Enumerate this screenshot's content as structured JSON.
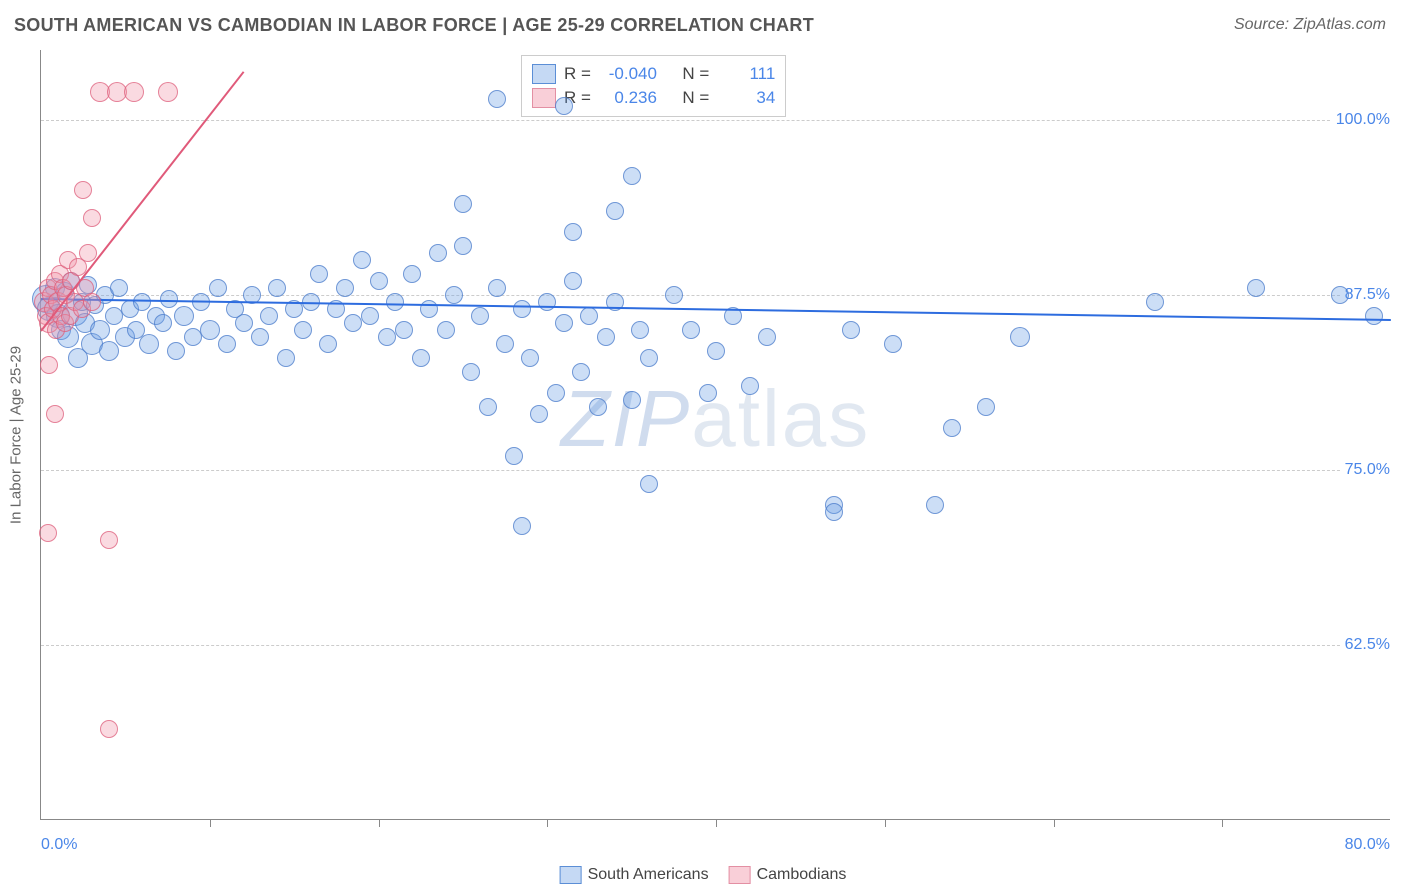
{
  "header": {
    "title": "SOUTH AMERICAN VS CAMBODIAN IN LABOR FORCE | AGE 25-29 CORRELATION CHART",
    "source": "Source: ZipAtlas.com"
  },
  "chart": {
    "type": "scatter",
    "watermark_a": "ZIP",
    "watermark_b": "atlas",
    "background_color": "#ffffff",
    "grid_color": "#cccccc",
    "axis_color": "#888888",
    "yaxis_title": "In Labor Force | Age 25-29",
    "yaxis_title_color": "#666666",
    "xlim": [
      0,
      80
    ],
    "ylim": [
      50,
      105
    ],
    "xtick_step": 10,
    "yticks": [
      62.5,
      75.0,
      87.5,
      100.0
    ],
    "ytick_labels": [
      "62.5%",
      "75.0%",
      "87.5%",
      "100.0%"
    ],
    "xaxis_label_left": "0.0%",
    "xaxis_label_right": "80.0%",
    "tick_label_color": "#4a86e8",
    "tick_label_fontsize": 16,
    "point_radius_range": [
      8,
      14
    ],
    "series": [
      {
        "name": "South Americans",
        "fill": "rgba(110,160,230,0.35)",
        "stroke": "rgba(70,120,200,0.7)",
        "trend_color": "#2d6cdf",
        "trend": {
          "x0": 0,
          "y0": 87.3,
          "x1": 80,
          "y1": 85.8
        },
        "R": "-0.040",
        "N": "111",
        "swatch_fill": "rgba(150,185,235,0.55)",
        "swatch_border": "#5b8ed6",
        "points": [
          [
            0.3,
            87.2,
            14
          ],
          [
            0.5,
            86.5,
            12
          ],
          [
            0.8,
            88.0,
            10
          ],
          [
            1.0,
            86.0,
            12
          ],
          [
            1.2,
            85.0,
            10
          ],
          [
            1.4,
            87.8,
            9
          ],
          [
            1.6,
            84.5,
            11
          ],
          [
            1.8,
            88.5,
            9
          ],
          [
            2.0,
            86.2,
            13
          ],
          [
            2.2,
            83.0,
            10
          ],
          [
            2.4,
            87.0,
            9
          ],
          [
            2.6,
            85.5,
            10
          ],
          [
            2.8,
            88.2,
            9
          ],
          [
            3.0,
            84.0,
            11
          ],
          [
            3.2,
            86.8,
            9
          ],
          [
            3.5,
            85.0,
            10
          ],
          [
            3.8,
            87.5,
            9
          ],
          [
            4.0,
            83.5,
            10
          ],
          [
            4.3,
            86.0,
            9
          ],
          [
            4.6,
            88.0,
            9
          ],
          [
            5.0,
            84.5,
            10
          ],
          [
            5.3,
            86.5,
            9
          ],
          [
            5.6,
            85.0,
            9
          ],
          [
            6.0,
            87.0,
            9
          ],
          [
            6.4,
            84.0,
            10
          ],
          [
            6.8,
            86.0,
            9
          ],
          [
            7.2,
            85.5,
            9
          ],
          [
            7.6,
            87.2,
            9
          ],
          [
            8.0,
            83.5,
            9
          ],
          [
            8.5,
            86.0,
            10
          ],
          [
            9.0,
            84.5,
            9
          ],
          [
            9.5,
            87.0,
            9
          ],
          [
            10.0,
            85.0,
            10
          ],
          [
            10.5,
            88.0,
            9
          ],
          [
            11.0,
            84.0,
            9
          ],
          [
            11.5,
            86.5,
            9
          ],
          [
            12.0,
            85.5,
            9
          ],
          [
            12.5,
            87.5,
            9
          ],
          [
            13.0,
            84.5,
            9
          ],
          [
            13.5,
            86.0,
            9
          ],
          [
            14.0,
            88.0,
            9
          ],
          [
            14.5,
            83.0,
            9
          ],
          [
            15.0,
            86.5,
            9
          ],
          [
            15.5,
            85.0,
            9
          ],
          [
            16.0,
            87.0,
            9
          ],
          [
            16.5,
            89.0,
            9
          ],
          [
            17.0,
            84.0,
            9
          ],
          [
            17.5,
            86.5,
            9
          ],
          [
            18.0,
            88.0,
            9
          ],
          [
            18.5,
            85.5,
            9
          ],
          [
            19.0,
            90.0,
            9
          ],
          [
            19.5,
            86.0,
            9
          ],
          [
            20.0,
            88.5,
            9
          ],
          [
            20.5,
            84.5,
            9
          ],
          [
            21.0,
            87.0,
            9
          ],
          [
            21.5,
            85.0,
            9
          ],
          [
            22.0,
            89.0,
            9
          ],
          [
            22.5,
            83.0,
            9
          ],
          [
            23.0,
            86.5,
            9
          ],
          [
            23.5,
            90.5,
            9
          ],
          [
            24.0,
            85.0,
            9
          ],
          [
            24.5,
            87.5,
            9
          ],
          [
            25.0,
            91.0,
            9
          ],
          [
            25.5,
            82.0,
            9
          ],
          [
            26.0,
            86.0,
            9
          ],
          [
            26.5,
            79.5,
            9
          ],
          [
            27.0,
            88.0,
            9
          ],
          [
            27.5,
            84.0,
            9
          ],
          [
            28.0,
            76.0,
            9
          ],
          [
            28.5,
            86.5,
            9
          ],
          [
            29.0,
            83.0,
            9
          ],
          [
            29.5,
            79.0,
            9
          ],
          [
            30.0,
            87.0,
            9
          ],
          [
            30.5,
            80.5,
            9
          ],
          [
            31.0,
            85.5,
            9
          ],
          [
            27.0,
            101.5,
            9
          ],
          [
            28.5,
            71.0,
            9
          ],
          [
            31.5,
            88.5,
            9
          ],
          [
            32.0,
            82.0,
            9
          ],
          [
            32.5,
            86.0,
            9
          ],
          [
            33.0,
            79.5,
            9
          ],
          [
            33.5,
            84.5,
            9
          ],
          [
            34.0,
            87.0,
            9
          ],
          [
            25.0,
            94.0,
            9
          ],
          [
            35.0,
            80.0,
            9
          ],
          [
            35.5,
            85.0,
            9
          ],
          [
            36.0,
            83.0,
            9
          ],
          [
            31.0,
            101.0,
            9
          ],
          [
            37.5,
            87.5,
            9
          ],
          [
            31.5,
            92.0,
            9
          ],
          [
            38.5,
            85.0,
            9
          ],
          [
            34.0,
            93.5,
            9
          ],
          [
            39.5,
            80.5,
            9
          ],
          [
            40.0,
            83.5,
            9
          ],
          [
            35.0,
            96.0,
            9
          ],
          [
            41.0,
            86.0,
            9
          ],
          [
            36.0,
            74.0,
            9
          ],
          [
            42.0,
            81.0,
            9
          ],
          [
            43.0,
            84.5,
            9
          ],
          [
            47.0,
            72.5,
            9
          ],
          [
            47.0,
            72.0,
            9
          ],
          [
            48.0,
            85.0,
            9
          ],
          [
            50.5,
            84.0,
            9
          ],
          [
            53.0,
            72.5,
            9
          ],
          [
            54.0,
            78.0,
            9
          ],
          [
            56.0,
            79.5,
            9
          ],
          [
            58.0,
            84.5,
            10
          ],
          [
            66.0,
            87.0,
            9
          ],
          [
            77.0,
            87.5,
            9
          ],
          [
            79.0,
            86.0,
            9
          ],
          [
            72.0,
            88.0,
            9
          ]
        ]
      },
      {
        "name": "Cambodians",
        "fill": "rgba(240,150,170,0.35)",
        "stroke": "rgba(220,90,120,0.7)",
        "trend_color": "#e05a7a",
        "trend": {
          "x0": 0,
          "y0": 85.0,
          "x1": 12,
          "y1": 103.5
        },
        "R": "0.236",
        "N": "34",
        "swatch_fill": "rgba(245,175,190,0.6)",
        "swatch_border": "#e38fa3",
        "points": [
          [
            0.2,
            87.0,
            10
          ],
          [
            0.3,
            86.0,
            9
          ],
          [
            0.4,
            88.0,
            9
          ],
          [
            0.5,
            85.5,
            10
          ],
          [
            0.6,
            87.5,
            9
          ],
          [
            0.7,
            86.5,
            9
          ],
          [
            0.8,
            88.5,
            9
          ],
          [
            0.9,
            85.0,
            9
          ],
          [
            1.0,
            87.0,
            10
          ],
          [
            1.1,
            89.0,
            9
          ],
          [
            1.2,
            86.0,
            9
          ],
          [
            1.3,
            88.0,
            9
          ],
          [
            1.4,
            85.5,
            9
          ],
          [
            1.5,
            87.5,
            9
          ],
          [
            1.6,
            90.0,
            9
          ],
          [
            1.7,
            86.0,
            9
          ],
          [
            1.8,
            88.5,
            9
          ],
          [
            2.0,
            87.0,
            9
          ],
          [
            2.2,
            89.5,
            9
          ],
          [
            2.4,
            86.5,
            9
          ],
          [
            2.6,
            88.0,
            9
          ],
          [
            2.8,
            90.5,
            9
          ],
          [
            3.0,
            87.0,
            9
          ],
          [
            0.5,
            82.5,
            9
          ],
          [
            0.8,
            79.0,
            9
          ],
          [
            0.4,
            70.5,
            9
          ],
          [
            4.0,
            70.0,
            9
          ],
          [
            3.0,
            93.0,
            9
          ],
          [
            2.5,
            95.0,
            9
          ],
          [
            3.5,
            102.0,
            10
          ],
          [
            4.5,
            102.0,
            10
          ],
          [
            5.5,
            102.0,
            10
          ],
          [
            7.5,
            102.0,
            10
          ],
          [
            4.0,
            56.5,
            9
          ]
        ]
      }
    ],
    "stats_legend": {
      "labels": {
        "R": "R =",
        "N": "N ="
      }
    },
    "bottom_legend": {
      "items": [
        {
          "label": "South Americans",
          "series": 0
        },
        {
          "label": "Cambodians",
          "series": 1
        }
      ]
    }
  }
}
